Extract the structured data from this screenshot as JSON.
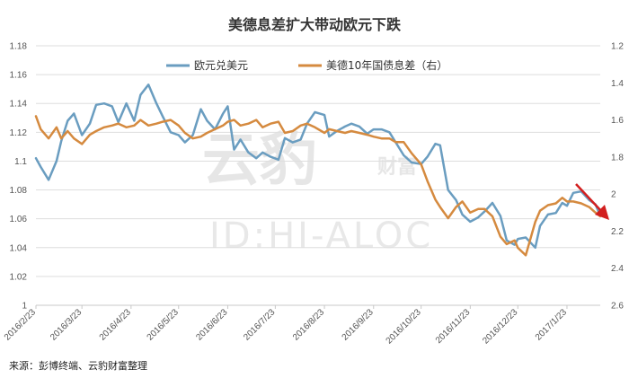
{
  "source_text": "来源：彭博终端、云豹财富整理",
  "watermark": {
    "main": "云豹",
    "sub": "财富",
    "id": "ID:HI-ALOC"
  },
  "colors": {
    "euro": "#6a9dc0",
    "spread": "#d58a3f",
    "grid": "#dedede",
    "arrow": "#d21f1f"
  },
  "chart_data": {
    "type": "line",
    "title": "美德息差扩大带动欧元下跌",
    "legend_placement": "top-center",
    "grid": true,
    "x_ticks": [
      "2016/2/23",
      "2016/3/23",
      "2016/4/23",
      "2016/5/23",
      "2016/6/23",
      "2016/7/23",
      "2016/8/23",
      "2016/9/23",
      "2016/10/23",
      "2016/11/23",
      "2016/12/23",
      "2017/1/23"
    ],
    "x_range": [
      "2016/2/23",
      "2017/2/13"
    ],
    "y_left": {
      "lim": [
        1,
        1.18
      ],
      "ticks": [
        "1",
        "1.02",
        "1.04",
        "1.06",
        "1.08",
        "1.1",
        "1.12",
        "1.14",
        "1.16",
        "1.18"
      ]
    },
    "y_right": {
      "lim": [
        2.6,
        1.2
      ],
      "inverted": true,
      "ticks": [
        "1.2",
        "1.4",
        "1.6",
        "1.8",
        "2",
        "2.2",
        "2.4",
        "2.6"
      ]
    },
    "series": [
      {
        "name": "欧元兑美元",
        "axis": "left",
        "x": [
          "2016/2/23",
          "2016/2/26",
          "2016/3/2",
          "2016/3/7",
          "2016/3/10",
          "2016/3/14",
          "2016/3/18",
          "2016/3/23",
          "2016/3/28",
          "2016/4/1",
          "2016/4/6",
          "2016/4/11",
          "2016/4/15",
          "2016/4/20",
          "2016/4/25",
          "2016/4/29",
          "2016/5/4",
          "2016/5/9",
          "2016/5/13",
          "2016/5/18",
          "2016/5/23",
          "2016/5/27",
          "2016/6/1",
          "2016/6/6",
          "2016/6/10",
          "2016/6/15",
          "2016/6/20",
          "2016/6/23",
          "2016/6/27",
          "2016/7/1",
          "2016/7/6",
          "2016/7/11",
          "2016/7/15",
          "2016/7/20",
          "2016/7/25",
          "2016/7/29",
          "2016/8/3",
          "2016/8/8",
          "2016/8/12",
          "2016/8/17",
          "2016/8/23",
          "2016/8/26",
          "2016/8/31",
          "2016/9/5",
          "2016/9/9",
          "2016/9/14",
          "2016/9/19",
          "2016/9/23",
          "2016/9/28",
          "2016/10/3",
          "2016/10/7",
          "2016/10/12",
          "2016/10/17",
          "2016/10/23",
          "2016/10/27",
          "2016/11/1",
          "2016/11/4",
          "2016/11/9",
          "2016/11/14",
          "2016/11/18",
          "2016/11/23",
          "2016/11/28",
          "2016/12/2",
          "2016/12/7",
          "2016/12/12",
          "2016/12/16",
          "2016/12/21",
          "2016/12/23",
          "2016/12/28",
          "2017/1/3",
          "2017/1/6",
          "2017/1/11",
          "2017/1/16",
          "2017/1/20",
          "2017/1/23",
          "2017/1/27",
          "2017/2/1",
          "2017/2/6",
          "2017/2/10",
          "2017/2/13"
        ],
        "values": [
          1.102,
          1.096,
          1.087,
          1.1,
          1.114,
          1.128,
          1.133,
          1.118,
          1.126,
          1.139,
          1.14,
          1.138,
          1.127,
          1.14,
          1.128,
          1.146,
          1.153,
          1.14,
          1.131,
          1.12,
          1.118,
          1.113,
          1.118,
          1.136,
          1.128,
          1.122,
          1.133,
          1.138,
          1.108,
          1.115,
          1.106,
          1.102,
          1.106,
          1.103,
          1.101,
          1.116,
          1.113,
          1.115,
          1.126,
          1.134,
          1.132,
          1.117,
          1.121,
          1.124,
          1.126,
          1.124,
          1.119,
          1.122,
          1.122,
          1.12,
          1.113,
          1.104,
          1.099,
          1.098,
          1.103,
          1.112,
          1.111,
          1.08,
          1.073,
          1.063,
          1.058,
          1.061,
          1.065,
          1.071,
          1.062,
          1.045,
          1.042,
          1.046,
          1.047,
          1.04,
          1.055,
          1.063,
          1.064,
          1.071,
          1.069,
          1.078,
          1.079,
          1.073,
          1.07,
          1.062
        ]
      },
      {
        "name": "美德10年国债息差（右）",
        "axis": "right",
        "x": [
          "2016/2/23",
          "2016/2/26",
          "2016/3/2",
          "2016/3/7",
          "2016/3/10",
          "2016/3/14",
          "2016/3/18",
          "2016/3/23",
          "2016/3/28",
          "2016/4/1",
          "2016/4/6",
          "2016/4/11",
          "2016/4/15",
          "2016/4/20",
          "2016/4/25",
          "2016/4/29",
          "2016/5/4",
          "2016/5/9",
          "2016/5/13",
          "2016/5/18",
          "2016/5/23",
          "2016/5/27",
          "2016/6/1",
          "2016/6/6",
          "2016/6/10",
          "2016/6/15",
          "2016/6/20",
          "2016/6/23",
          "2016/6/27",
          "2016/7/1",
          "2016/7/6",
          "2016/7/11",
          "2016/7/15",
          "2016/7/20",
          "2016/7/25",
          "2016/7/29",
          "2016/8/3",
          "2016/8/8",
          "2016/8/12",
          "2016/8/17",
          "2016/8/23",
          "2016/8/26",
          "2016/8/31",
          "2016/9/5",
          "2016/9/9",
          "2016/9/14",
          "2016/9/19",
          "2016/9/23",
          "2016/9/28",
          "2016/10/3",
          "2016/10/7",
          "2016/10/12",
          "2016/10/17",
          "2016/10/23",
          "2016/10/27",
          "2016/11/1",
          "2016/11/4",
          "2016/11/9",
          "2016/11/14",
          "2016/11/18",
          "2016/11/23",
          "2016/11/28",
          "2016/12/2",
          "2016/12/7",
          "2016/12/12",
          "2016/12/16",
          "2016/12/21",
          "2016/12/23",
          "2016/12/28",
          "2017/1/3",
          "2017/1/6",
          "2017/1/11",
          "2017/1/16",
          "2017/1/20",
          "2017/1/23",
          "2017/1/27",
          "2017/2/1",
          "2017/2/6",
          "2017/2/10",
          "2017/2/13"
        ],
        "values": [
          1.58,
          1.65,
          1.7,
          1.64,
          1.7,
          1.66,
          1.7,
          1.73,
          1.68,
          1.66,
          1.64,
          1.63,
          1.62,
          1.64,
          1.63,
          1.6,
          1.63,
          1.62,
          1.61,
          1.6,
          1.63,
          1.67,
          1.7,
          1.69,
          1.67,
          1.65,
          1.63,
          1.61,
          1.6,
          1.63,
          1.62,
          1.6,
          1.64,
          1.62,
          1.61,
          1.67,
          1.66,
          1.63,
          1.62,
          1.64,
          1.67,
          1.65,
          1.66,
          1.67,
          1.66,
          1.67,
          1.68,
          1.69,
          1.7,
          1.7,
          1.72,
          1.72,
          1.78,
          1.84,
          1.93,
          2.03,
          2.07,
          2.13,
          2.07,
          2.04,
          2.1,
          2.08,
          2.08,
          2.12,
          2.23,
          2.27,
          2.25,
          2.29,
          2.33,
          2.15,
          2.09,
          2.06,
          2.05,
          2.02,
          2.04,
          2.04,
          2.05,
          2.07,
          2.1,
          2.12
        ]
      }
    ]
  }
}
